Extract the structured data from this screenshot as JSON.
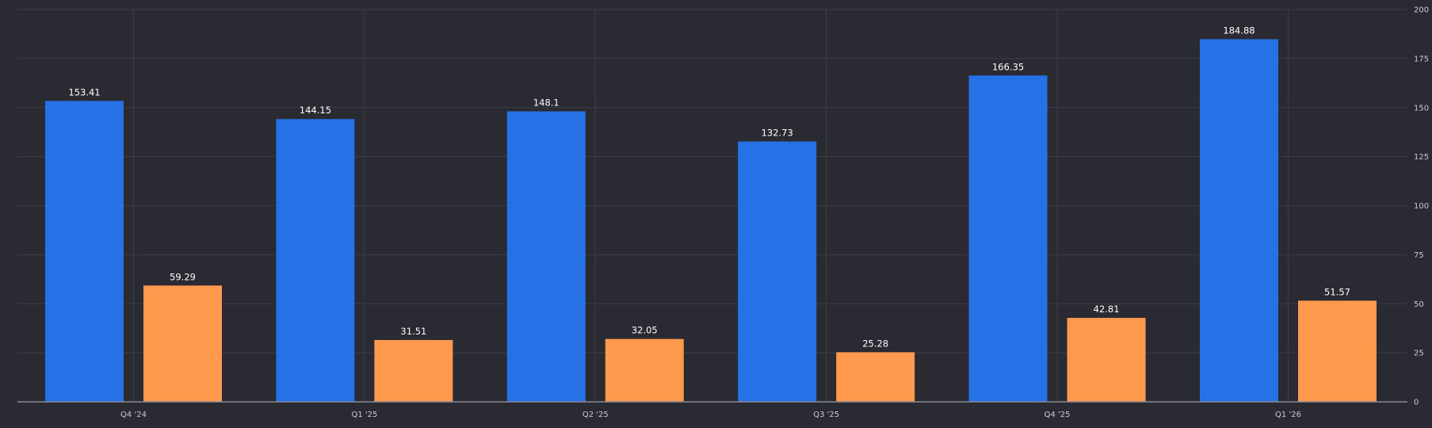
{
  "chart_data": {
    "type": "bar",
    "title": "",
    "xlabel": "",
    "ylabel": "",
    "categories": [
      "Q4 '24",
      "Q1 '25",
      "Q2 '25",
      "Q3 '25",
      "Q4 '25",
      "Q1 '26"
    ],
    "series": [
      {
        "color": "#2671e6",
        "values": [
          153.41,
          144.15,
          148.1,
          132.73,
          166.35,
          184.88
        ]
      },
      {
        "color": "#ff994d",
        "values": [
          59.29,
          31.51,
          32.05,
          25.28,
          42.81,
          51.57
        ]
      }
    ],
    "ylim": [
      0,
      200
    ],
    "yticks": [
      0,
      25,
      50,
      75,
      100,
      125,
      150,
      175,
      200
    ],
    "y_axis_side": "right",
    "grid": true,
    "legend": "none",
    "background_color": "#2a2a33"
  }
}
